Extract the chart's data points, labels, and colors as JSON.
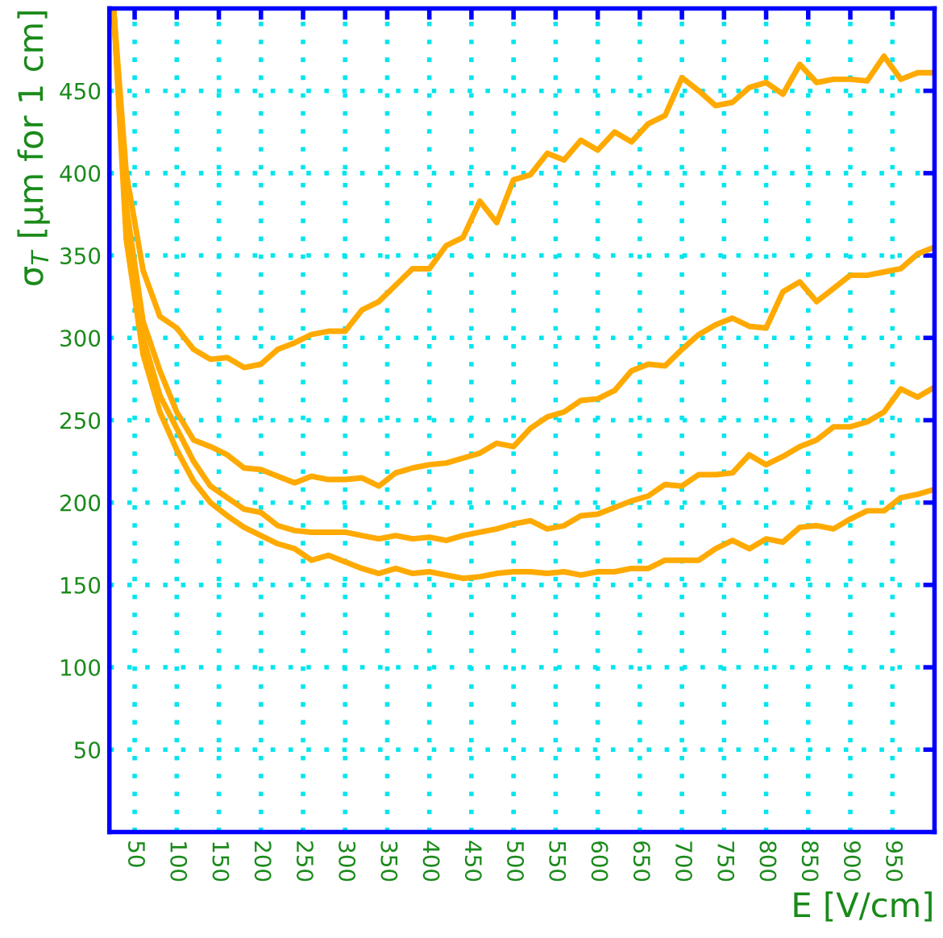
{
  "chart_data": {
    "type": "line",
    "xlabel": "E [V/cm]",
    "ylabel": "σ$_{T}$ [μm for 1 cm]",
    "x": [
      25,
      40,
      60,
      80,
      100,
      120,
      140,
      160,
      180,
      200,
      220,
      240,
      260,
      280,
      300,
      320,
      340,
      360,
      380,
      400,
      420,
      440,
      460,
      480,
      500,
      520,
      540,
      560,
      580,
      600,
      620,
      640,
      660,
      680,
      700,
      720,
      740,
      760,
      780,
      800,
      820,
      840,
      860,
      880,
      900,
      920,
      940,
      960,
      980,
      1000
    ],
    "series": [
      {
        "color": "#ffaa00",
        "values": [
          500,
          400,
          341,
          313,
          306,
          293,
          287,
          288,
          282,
          284,
          293,
          297,
          302,
          304,
          304,
          317,
          322,
          332,
          342,
          342,
          356,
          361,
          383,
          370,
          396,
          399,
          412,
          408,
          420,
          414,
          425,
          419,
          430,
          435,
          458,
          450,
          441,
          443,
          452,
          455,
          448,
          466,
          455,
          457,
          457,
          456,
          471,
          457,
          461,
          461
        ]
      },
      {
        "color": "#ffaa00",
        "values": [
          500,
          380,
          310,
          280,
          255,
          238,
          234,
          229,
          221,
          220,
          216,
          212,
          216,
          214,
          214,
          215,
          210,
          218,
          221,
          223,
          224,
          227,
          230,
          236,
          234,
          245,
          252,
          255,
          262,
          263,
          268,
          280,
          284,
          283,
          293,
          302,
          308,
          312,
          307,
          306,
          328,
          334,
          322,
          330,
          338,
          338,
          340,
          342,
          351,
          355
        ]
      },
      {
        "color": "#ffaa00",
        "values": [
          500,
          370,
          300,
          265,
          245,
          225,
          210,
          203,
          196,
          194,
          186,
          183,
          182,
          182,
          182,
          180,
          178,
          180,
          178,
          179,
          177,
          180,
          182,
          184,
          187,
          189,
          184,
          186,
          192,
          193,
          197,
          201,
          204,
          211,
          210,
          217,
          217,
          218,
          229,
          223,
          228,
          234,
          238,
          246,
          246,
          249,
          255,
          269,
          264,
          270
        ]
      },
      {
        "color": "#ffaa00",
        "values": [
          500,
          360,
          290,
          255,
          232,
          213,
          200,
          192,
          185,
          180,
          175,
          172,
          165,
          168,
          164,
          160,
          157,
          160,
          157,
          158,
          156,
          154,
          155,
          157,
          158,
          158,
          157,
          158,
          156,
          158,
          158,
          160,
          160,
          165,
          165,
          165,
          172,
          177,
          172,
          178,
          176,
          185,
          186,
          184,
          190,
          195,
          195,
          203,
          205,
          208
        ]
      }
    ],
    "xlim": [
      20,
      1000
    ],
    "ylim": [
      0,
      500
    ],
    "xticks": [
      50,
      100,
      150,
      200,
      250,
      300,
      350,
      400,
      450,
      500,
      550,
      600,
      650,
      700,
      750,
      800,
      850,
      900,
      950
    ],
    "yticks": [
      50,
      100,
      150,
      200,
      250,
      300,
      350,
      400,
      450
    ],
    "grid": true,
    "line_style": "solid",
    "marker": "none"
  }
}
